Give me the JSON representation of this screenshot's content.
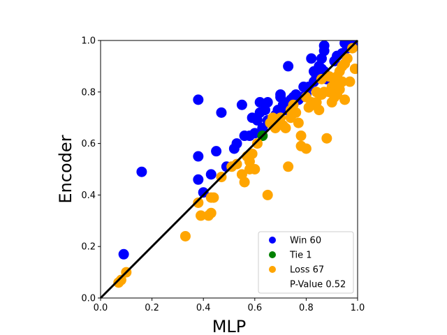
{
  "chart_data": {
    "type": "scatter",
    "xlabel": "MLP",
    "ylabel": "Encoder",
    "xlim": [
      0,
      1
    ],
    "ylim": [
      0,
      1
    ],
    "xticks": [
      "0.0",
      "0.2",
      "0.4",
      "0.6",
      "0.8",
      "1.0"
    ],
    "yticks": [
      "0.0",
      "0.2",
      "0.4",
      "0.6",
      "0.8",
      "1.0"
    ],
    "grid": false,
    "legend_position": "lower-right",
    "diagonal": {
      "from": [
        0,
        0
      ],
      "to": [
        1,
        1
      ],
      "color": "#000000"
    },
    "series": [
      {
        "name": "Win 60",
        "color": "#0000ff",
        "points": [
          [
            0.09,
            0.17
          ],
          [
            0.16,
            0.49
          ],
          [
            0.38,
            0.46
          ],
          [
            0.38,
            0.77
          ],
          [
            0.38,
            0.55
          ],
          [
            0.4,
            0.41
          ],
          [
            0.43,
            0.48
          ],
          [
            0.45,
            0.57
          ],
          [
            0.47,
            0.72
          ],
          [
            0.49,
            0.51
          ],
          [
            0.52,
            0.58
          ],
          [
            0.53,
            0.6
          ],
          [
            0.55,
            0.75
          ],
          [
            0.56,
            0.63
          ],
          [
            0.58,
            0.63
          ],
          [
            0.59,
            0.7
          ],
          [
            0.6,
            0.64
          ],
          [
            0.61,
            0.69
          ],
          [
            0.62,
            0.76
          ],
          [
            0.62,
            0.72
          ],
          [
            0.63,
            0.66
          ],
          [
            0.64,
            0.73
          ],
          [
            0.65,
            0.76
          ],
          [
            0.65,
            0.69
          ],
          [
            0.68,
            0.71
          ],
          [
            0.69,
            0.73
          ],
          [
            0.7,
            0.79
          ],
          [
            0.7,
            0.78
          ],
          [
            0.71,
            0.75
          ],
          [
            0.72,
            0.73
          ],
          [
            0.73,
            0.9
          ],
          [
            0.73,
            0.76
          ],
          [
            0.74,
            0.77
          ],
          [
            0.75,
            0.78
          ],
          [
            0.76,
            0.79
          ],
          [
            0.77,
            0.77
          ],
          [
            0.78,
            0.78
          ],
          [
            0.79,
            0.82
          ],
          [
            0.8,
            0.79
          ],
          [
            0.81,
            0.82
          ],
          [
            0.82,
            0.93
          ],
          [
            0.83,
            0.88
          ],
          [
            0.83,
            0.84
          ],
          [
            0.84,
            0.86
          ],
          [
            0.85,
            0.87
          ],
          [
            0.85,
            0.9
          ],
          [
            0.86,
            0.89
          ],
          [
            0.86,
            0.93
          ],
          [
            0.87,
            0.96
          ],
          [
            0.87,
            0.98
          ],
          [
            0.87,
            0.88
          ],
          [
            0.88,
            0.85
          ],
          [
            0.91,
            0.92
          ],
          [
            0.92,
            0.94
          ],
          [
            0.94,
            0.95
          ],
          [
            0.95,
            0.99
          ],
          [
            0.96,
            0.97
          ],
          [
            0.97,
            0.98
          ],
          [
            0.98,
            0.99
          ],
          [
            0.99,
            1.0
          ]
        ]
      },
      {
        "name": "Tie 1",
        "color": "#008000",
        "points": [
          [
            0.63,
            0.63
          ]
        ]
      },
      {
        "name": "Loss 67",
        "color": "#ffa500",
        "points": [
          [
            0.07,
            0.06
          ],
          [
            0.08,
            0.07
          ],
          [
            0.1,
            0.1
          ],
          [
            0.33,
            0.24
          ],
          [
            0.38,
            0.37
          ],
          [
            0.39,
            0.32
          ],
          [
            0.42,
            0.32
          ],
          [
            0.43,
            0.33
          ],
          [
            0.43,
            0.39
          ],
          [
            0.44,
            0.39
          ],
          [
            0.47,
            0.47
          ],
          [
            0.51,
            0.51
          ],
          [
            0.55,
            0.48
          ],
          [
            0.56,
            0.45
          ],
          [
            0.57,
            0.55
          ],
          [
            0.58,
            0.5
          ],
          [
            0.58,
            0.53
          ],
          [
            0.59,
            0.56
          ],
          [
            0.6,
            0.5
          ],
          [
            0.65,
            0.4
          ],
          [
            0.66,
            0.68
          ],
          [
            0.67,
            0.7
          ],
          [
            0.69,
            0.69
          ],
          [
            0.7,
            0.7
          ],
          [
            0.71,
            0.67
          ],
          [
            0.72,
            0.66
          ],
          [
            0.73,
            0.51
          ],
          [
            0.74,
            0.7
          ],
          [
            0.75,
            0.75
          ],
          [
            0.77,
            0.68
          ],
          [
            0.78,
            0.59
          ],
          [
            0.78,
            0.63
          ],
          [
            0.8,
            0.58
          ],
          [
            0.81,
            0.74
          ],
          [
            0.82,
            0.76
          ],
          [
            0.83,
            0.75
          ],
          [
            0.84,
            0.76
          ],
          [
            0.85,
            0.73
          ],
          [
            0.86,
            0.79
          ],
          [
            0.87,
            0.8
          ],
          [
            0.88,
            0.62
          ],
          [
            0.89,
            0.8
          ],
          [
            0.9,
            0.82
          ],
          [
            0.9,
            0.76
          ],
          [
            0.91,
            0.78
          ],
          [
            0.91,
            0.83
          ],
          [
            0.92,
            0.86
          ],
          [
            0.92,
            0.79
          ],
          [
            0.93,
            0.88
          ],
          [
            0.93,
            0.81
          ],
          [
            0.94,
            0.9
          ],
          [
            0.94,
            0.84
          ],
          [
            0.95,
            0.77
          ],
          [
            0.95,
            0.91
          ],
          [
            0.96,
            0.93
          ],
          [
            0.97,
            0.84
          ],
          [
            0.98,
            0.97
          ],
          [
            0.99,
            0.89
          ],
          [
            0.89,
            0.86
          ],
          [
            0.86,
            0.85
          ],
          [
            0.84,
            0.8
          ],
          [
            0.8,
            0.78
          ],
          [
            0.76,
            0.72
          ],
          [
            0.74,
            0.73
          ],
          [
            0.68,
            0.66
          ],
          [
            0.61,
            0.6
          ],
          [
            0.53,
            0.52
          ]
        ]
      }
    ],
    "legend": [
      {
        "label": "Win 60",
        "color": "#0000ff"
      },
      {
        "label": "Tie 1",
        "color": "#008000"
      },
      {
        "label": "Loss 67",
        "color": "#ffa500"
      },
      {
        "label": "P-Value 0.52",
        "color": null
      }
    ]
  }
}
